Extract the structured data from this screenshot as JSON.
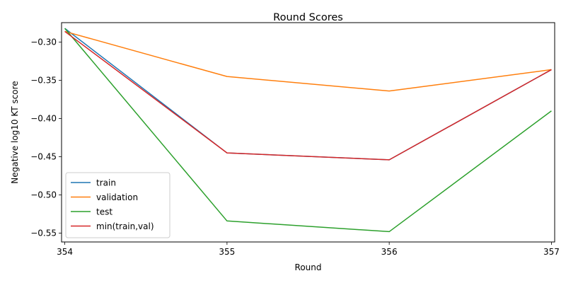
{
  "chart_data": {
    "type": "line",
    "title": "Round Scores",
    "xlabel": "Round",
    "ylabel": "Negative log10 KT score",
    "x": [
      354,
      355,
      356,
      357
    ],
    "xlim": [
      353.98,
      357.02
    ],
    "ylim": [
      -0.5615,
      -0.2745
    ],
    "yticks": [
      -0.3,
      -0.35,
      -0.4,
      -0.45,
      -0.5,
      -0.55
    ],
    "ytick_labels": [
      "−0.30",
      "−0.35",
      "−0.40",
      "−0.45",
      "−0.50",
      "−0.55"
    ],
    "xticks": [
      354,
      355,
      356,
      357
    ],
    "xtick_labels": [
      "354",
      "355",
      "356",
      "357"
    ],
    "grid": false,
    "legend_position": "lower-left",
    "series": [
      {
        "name": "train",
        "color": "#1f77b4",
        "values": [
          -0.282,
          -0.445,
          -0.454,
          -0.336
        ]
      },
      {
        "name": "validation",
        "color": "#ff7f0e",
        "values": [
          -0.286,
          -0.345,
          -0.364,
          -0.336
        ]
      },
      {
        "name": "test",
        "color": "#2ca02c",
        "values": [
          -0.282,
          -0.534,
          -0.548,
          -0.39
        ]
      },
      {
        "name": "min(train,val)",
        "color": "#d62728",
        "values": [
          -0.286,
          -0.445,
          -0.454,
          -0.336
        ]
      }
    ]
  }
}
